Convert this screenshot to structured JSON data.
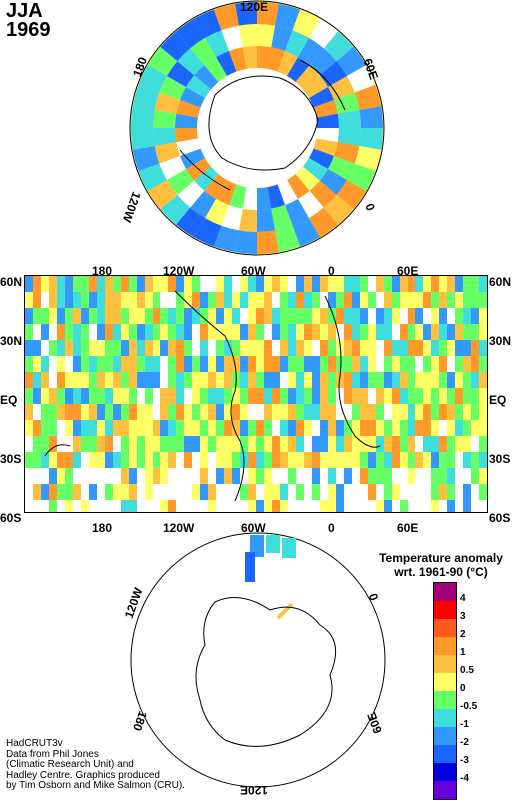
{
  "title": {
    "season": "JJA",
    "year": "1969"
  },
  "north_polar": {
    "labels": {
      "top": "120E",
      "left": "180",
      "right": "60E",
      "lower_left": "120W",
      "lower_right": "0"
    }
  },
  "main_map": {
    "lat_labels": [
      "60N",
      "30N",
      "EQ",
      "30S",
      "60S"
    ],
    "lon_labels": [
      "180",
      "120W",
      "60W",
      "0",
      "60E"
    ]
  },
  "south_polar": {
    "labels": {
      "upper_left": "120W",
      "upper_right": "0",
      "lower_left": "180",
      "lower_right": "60E",
      "bottom": "120E"
    }
  },
  "legend": {
    "title_line1": "Temperature anomaly",
    "title_line2": "wrt. 1961-90  (°C)",
    "levels": [
      "4",
      "3",
      "2",
      "1",
      "0.5",
      "0",
      "-0.5",
      "-1",
      "-2",
      "-3",
      "-4"
    ],
    "colors": [
      "#a0007a",
      "#ff0000",
      "#ff5a1e",
      "#ff9a2a",
      "#ffc040",
      "#ffff66",
      "#66ff66",
      "#40dddd",
      "#3399ff",
      "#1a66ff",
      "#0000dd",
      "#6600dd"
    ]
  },
  "credit": {
    "line1": "HadCRUT3v",
    "line2": "Data from Phil Jones",
    "line3": "(Climatic Research Unit) and",
    "line4": "Hadley Centre.  Graphics produced",
    "line5": "by Tim Osborn and Mike Salmon (CRU)."
  }
}
